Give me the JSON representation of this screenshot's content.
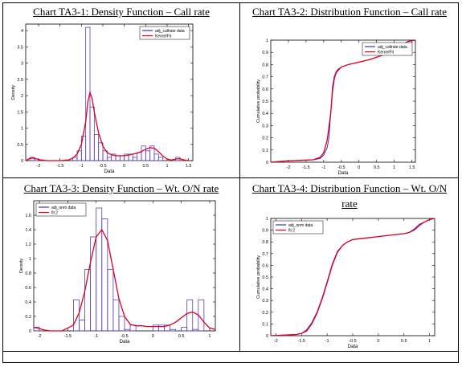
{
  "colors": {
    "hist": "#5a3fb8",
    "fit": "#e0001e",
    "axis": "#000000",
    "legend_line1": "#3d2bd6",
    "legend_line2": "#e0001e"
  },
  "chart_data": [
    {
      "type": "bar",
      "title": "Chart TA3-1: Density Function – Call rate",
      "xlabel": "Data",
      "ylabel": "Density",
      "xlim": [
        -2.3,
        1.6
      ],
      "ylim": [
        0,
        4.2
      ],
      "xticks": [
        "-2",
        "-1.5",
        "-1",
        "-0.5",
        "0",
        "0.5",
        "1",
        "1.5"
      ],
      "xtick_values": [
        -2,
        -1.5,
        -1,
        -0.5,
        0,
        0.5,
        1,
        1.5
      ],
      "yticks": [
        "0",
        "0.5",
        "1",
        "1.5",
        "2",
        "2.5",
        "3",
        "3.5",
        "4"
      ],
      "ytick_values": [
        0,
        0.5,
        1,
        1.5,
        2,
        2.5,
        3,
        3.5,
        4
      ],
      "legend_position": "top-right",
      "series": [
        {
          "name": "adj_callrate data",
          "kind": "histogram",
          "bins": [
            [
              -2.2,
              -2.1
            ],
            [
              -2.1,
              -2.0
            ],
            [
              -1.2,
              -1.1
            ],
            [
              -1.1,
              -1.0
            ],
            [
              -1.0,
              -0.9
            ],
            [
              -0.9,
              -0.8
            ],
            [
              -0.8,
              -0.7
            ],
            [
              -0.7,
              -0.6
            ],
            [
              -0.6,
              -0.5
            ],
            [
              -0.5,
              -0.4
            ],
            [
              -0.4,
              -0.3
            ],
            [
              -0.3,
              -0.2
            ],
            [
              -0.2,
              -0.1
            ],
            [
              -0.1,
              0.0
            ],
            [
              0.0,
              0.1
            ],
            [
              0.1,
              0.2
            ],
            [
              0.2,
              0.3
            ],
            [
              0.3,
              0.4
            ],
            [
              0.4,
              0.5
            ],
            [
              0.5,
              0.6
            ],
            [
              0.6,
              0.7
            ],
            [
              0.7,
              0.8
            ],
            [
              0.8,
              0.9
            ],
            [
              1.2,
              1.3
            ]
          ],
          "values": [
            0.1,
            0.05,
            0.1,
            0.3,
            0.75,
            4.1,
            1.65,
            0.8,
            0.55,
            0.3,
            0.1,
            0.2,
            0.15,
            0.15,
            0.2,
            0.2,
            0.1,
            0.25,
            0.45,
            0.3,
            0.45,
            0.2,
            0.1,
            0.1
          ]
        },
        {
          "name": "KernelFit",
          "kind": "line",
          "x": [
            -2.3,
            -2.2,
            -2.1,
            -2.0,
            -1.8,
            -1.5,
            -1.3,
            -1.2,
            -1.1,
            -1.0,
            -0.9,
            -0.85,
            -0.8,
            -0.75,
            -0.7,
            -0.6,
            -0.5,
            -0.4,
            -0.3,
            -0.2,
            -0.1,
            0.0,
            0.1,
            0.2,
            0.3,
            0.4,
            0.5,
            0.6,
            0.7,
            0.8,
            0.9,
            1.0,
            1.1,
            1.2,
            1.3,
            1.4,
            1.5
          ],
          "y": [
            0.0,
            0.07,
            0.08,
            0.03,
            0.0,
            0.0,
            0.02,
            0.08,
            0.2,
            0.5,
            1.2,
            1.8,
            2.1,
            1.9,
            1.5,
            0.85,
            0.45,
            0.25,
            0.18,
            0.15,
            0.15,
            0.15,
            0.17,
            0.2,
            0.23,
            0.28,
            0.35,
            0.4,
            0.38,
            0.28,
            0.14,
            0.05,
            0.02,
            0.05,
            0.06,
            0.02,
            0.0
          ]
        }
      ]
    },
    {
      "type": "line",
      "title": "Chart TA3-2: Distribution Function – Call rate",
      "xlabel": "Data",
      "ylabel": "Cumulative probability",
      "xlim": [
        -2.5,
        1.6
      ],
      "ylim": [
        0,
        1
      ],
      "xticks": [
        "-2",
        "-1.5",
        "-1",
        "-0.5",
        "0",
        "0.5",
        "1",
        "1.5"
      ],
      "xtick_values": [
        -2,
        -1.5,
        -1,
        -0.5,
        0,
        0.5,
        1,
        1.5
      ],
      "yticks": [
        "0",
        "0.1",
        "0.2",
        "0.3",
        "0.4",
        "0.5",
        "0.6",
        "0.7",
        "0.8",
        "0.9",
        "1"
      ],
      "ytick_values": [
        0,
        0.1,
        0.2,
        0.3,
        0.4,
        0.5,
        0.6,
        0.7,
        0.8,
        0.9,
        1
      ],
      "legend_position": "top-right",
      "series": [
        {
          "name": "adj_callrate data",
          "x": [
            -2.5,
            -2.1,
            -1.3,
            -1.1,
            -1.0,
            -0.9,
            -0.85,
            -0.8,
            -0.75,
            -0.7,
            -0.65,
            -0.6,
            -0.5,
            -0.3,
            0.0,
            0.3,
            0.6,
            0.9,
            1.2,
            1.4,
            1.6
          ],
          "y": [
            0.0,
            0.01,
            0.02,
            0.03,
            0.06,
            0.12,
            0.2,
            0.4,
            0.62,
            0.7,
            0.74,
            0.76,
            0.78,
            0.8,
            0.82,
            0.84,
            0.87,
            0.9,
            0.96,
            0.99,
            1.0
          ]
        },
        {
          "name": "KernelFit",
          "x": [
            -2.5,
            -2.1,
            -1.3,
            -1.1,
            -1.0,
            -0.9,
            -0.8,
            -0.75,
            -0.7,
            -0.65,
            -0.6,
            -0.5,
            -0.3,
            0.0,
            0.3,
            0.6,
            0.9,
            1.2,
            1.4,
            1.6
          ],
          "y": [
            0.0,
            0.01,
            0.02,
            0.04,
            0.08,
            0.18,
            0.4,
            0.58,
            0.68,
            0.73,
            0.75,
            0.78,
            0.8,
            0.82,
            0.84,
            0.87,
            0.9,
            0.96,
            0.99,
            1.0
          ]
        }
      ]
    },
    {
      "type": "bar",
      "title": "Chart TA3-3: Density Function – Wt. O/N rate",
      "xlabel": "Data",
      "ylabel": "Density",
      "xlim": [
        -2.1,
        1.1
      ],
      "ylim": [
        0,
        1.8
      ],
      "xticks": [
        "-2",
        "-1.5",
        "-1",
        "-0.5",
        "0",
        "0.5",
        "1"
      ],
      "xtick_values": [
        -2,
        -1.5,
        -1,
        -0.5,
        0,
        0.5,
        1
      ],
      "yticks": [
        "0",
        "0.2",
        "0.4",
        "0.6",
        "0.8",
        "1",
        "1.2",
        "1.4",
        "1.6"
      ],
      "ytick_values": [
        0,
        0.2,
        0.4,
        0.6,
        0.8,
        1,
        1.2,
        1.4,
        1.6
      ],
      "legend_position": "top-left",
      "series": [
        {
          "name": "adj_onm data",
          "kind": "histogram",
          "bins": [
            [
              -2.1,
              -2.0
            ],
            [
              -1.4,
              -1.3
            ],
            [
              -1.3,
              -1.2
            ],
            [
              -1.2,
              -1.1
            ],
            [
              -1.1,
              -1.0
            ],
            [
              -1.0,
              -0.9
            ],
            [
              -0.9,
              -0.8
            ],
            [
              -0.8,
              -0.7
            ],
            [
              -0.7,
              -0.6
            ],
            [
              -0.6,
              -0.5
            ],
            [
              -0.5,
              -0.4
            ],
            [
              -0.4,
              -0.3
            ],
            [
              0.0,
              0.1
            ],
            [
              0.1,
              0.2
            ],
            [
              0.2,
              0.3
            ],
            [
              0.3,
              0.4
            ],
            [
              0.4,
              0.5
            ],
            [
              0.5,
              0.6
            ],
            [
              0.6,
              0.7
            ],
            [
              0.7,
              0.8
            ],
            [
              0.8,
              0.9
            ]
          ],
          "values": [
            0.05,
            0.43,
            0.15,
            0.85,
            1.3,
            1.7,
            1.55,
            0.85,
            0.43,
            0.2,
            0.02,
            0.08,
            0.08,
            0.08,
            0.08,
            0.02,
            0.0,
            0.05,
            0.43,
            0.02,
            0.43
          ]
        },
        {
          "name": "fit 2",
          "kind": "line",
          "x": [
            -2.1,
            -2.0,
            -1.9,
            -1.8,
            -1.6,
            -1.4,
            -1.3,
            -1.2,
            -1.1,
            -1.0,
            -0.9,
            -0.8,
            -0.7,
            -0.6,
            -0.5,
            -0.4,
            -0.3,
            -0.2,
            -0.1,
            0.0,
            0.1,
            0.2,
            0.3,
            0.4,
            0.5,
            0.6,
            0.7,
            0.8,
            0.9,
            1.0,
            1.1
          ],
          "y": [
            0.05,
            0.03,
            0.01,
            0.0,
            0.0,
            0.08,
            0.25,
            0.55,
            0.95,
            1.3,
            1.4,
            1.25,
            0.85,
            0.45,
            0.2,
            0.09,
            0.07,
            0.07,
            0.06,
            0.06,
            0.06,
            0.06,
            0.08,
            0.12,
            0.18,
            0.24,
            0.26,
            0.22,
            0.12,
            0.04,
            0.02
          ]
        }
      ]
    },
    {
      "type": "line",
      "title": "Chart TA3-4: Distribution Function – Wt. O/N rate",
      "xlabel": "Data",
      "ylabel": "Cumulative probability",
      "xlim": [
        -2.1,
        1.1
      ],
      "ylim": [
        0,
        1
      ],
      "xticks": [
        "-2",
        "-1.5",
        "-1",
        "-0.5",
        "0",
        "0.5",
        "1"
      ],
      "xtick_values": [
        -2,
        -1.5,
        -1,
        -0.5,
        0,
        0.5,
        1
      ],
      "yticks": [
        "0",
        "0.1",
        "0.2",
        "0.3",
        "0.4",
        "0.5",
        "0.6",
        "0.7",
        "0.8",
        "0.9",
        "1"
      ],
      "ytick_values": [
        0,
        0.1,
        0.2,
        0.3,
        0.4,
        0.5,
        0.6,
        0.7,
        0.8,
        0.9,
        1
      ],
      "legend_position": "top-left",
      "series": [
        {
          "name": "adj_onm data",
          "x": [
            -2.1,
            -1.6,
            -1.5,
            -1.4,
            -1.3,
            -1.2,
            -1.1,
            -1.0,
            -0.9,
            -0.8,
            -0.7,
            -0.6,
            -0.5,
            -0.3,
            -0.1,
            0.1,
            0.3,
            0.5,
            0.6,
            0.7,
            0.8,
            0.9,
            1.0,
            1.1
          ],
          "y": [
            0.0,
            0.01,
            0.02,
            0.05,
            0.11,
            0.2,
            0.32,
            0.46,
            0.61,
            0.72,
            0.77,
            0.8,
            0.82,
            0.83,
            0.84,
            0.85,
            0.86,
            0.87,
            0.88,
            0.91,
            0.95,
            0.97,
            0.99,
            1.0
          ]
        },
        {
          "name": "fit 2",
          "x": [
            -2.1,
            -1.6,
            -1.5,
            -1.4,
            -1.3,
            -1.2,
            -1.1,
            -1.0,
            -0.9,
            -0.8,
            -0.7,
            -0.6,
            -0.5,
            -0.3,
            -0.1,
            0.1,
            0.3,
            0.5,
            0.6,
            0.7,
            0.8,
            0.9,
            1.0,
            1.1
          ],
          "y": [
            0.0,
            0.01,
            0.02,
            0.04,
            0.1,
            0.19,
            0.31,
            0.45,
            0.6,
            0.71,
            0.77,
            0.8,
            0.82,
            0.83,
            0.84,
            0.85,
            0.86,
            0.87,
            0.88,
            0.9,
            0.94,
            0.97,
            0.99,
            1.0
          ]
        }
      ]
    }
  ]
}
